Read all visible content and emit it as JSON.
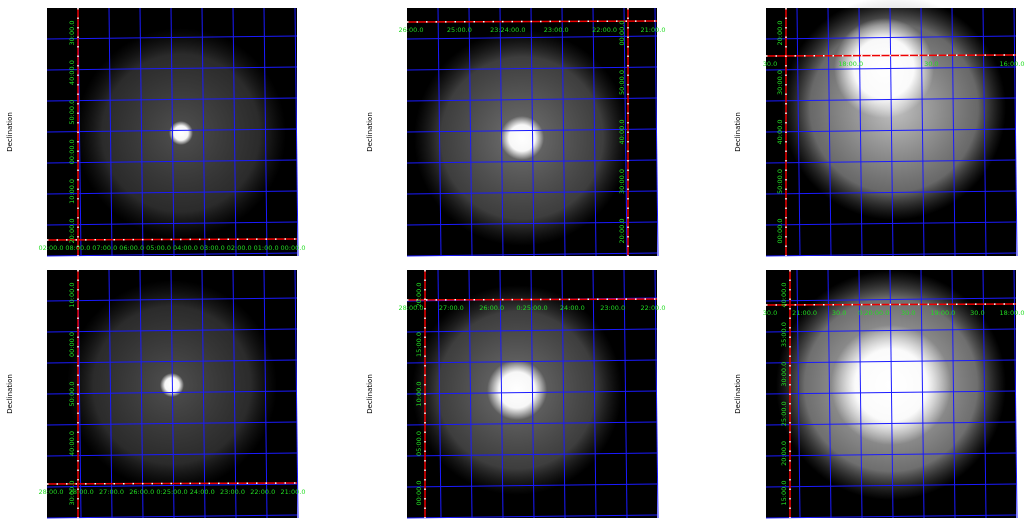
{
  "panels": [
    {
      "y_label": "Declination",
      "x_tick_labels": [
        "02:00.0",
        "08:00.0",
        "07:00.0",
        "06:00.0",
        "05:00.0",
        "04:00.0",
        "03:00.0",
        "02:00.0",
        "01:00.0",
        "00:00.0"
      ],
      "y_tick_labels": [
        "30:00.0",
        "40:00.0",
        "50:00.0",
        "00:00.0",
        "10:00.0",
        "20:00.0"
      ]
    },
    {
      "y_label": "Declination",
      "x_tick_labels": [
        "26:00.0",
        "25:00.0",
        "23:24:00.0",
        "23:00.0",
        "22:00.0",
        "21:00.0"
      ],
      "y_tick_labels": [
        "00:00.0",
        "50:00.0",
        "40:00.0",
        "30:00.0",
        "20:00.0"
      ]
    },
    {
      "y_label": "Declination",
      "x_tick_labels": [
        "30.0",
        "18:00.0",
        "30.0",
        "16:00.0"
      ],
      "y_tick_labels": [
        "20:00.0",
        "30:00.0",
        "40:00.0",
        "50:00.0",
        "00:00.0"
      ]
    },
    {
      "y_label": "Declination",
      "x_tick_labels": [
        "28:00.0",
        "28:00.0",
        "27:00.0",
        "26:00.0",
        "0:25:00.0",
        "24:00.0",
        "23:00.0",
        "22:00.0",
        "21:00.0"
      ],
      "y_tick_labels": [
        "10:00.0",
        "00:00.0",
        "50:00.0",
        "40:00.0",
        "30:00.0"
      ]
    },
    {
      "y_label": "Declination",
      "x_tick_labels": [
        "28:00.0",
        "27:00.0",
        "26:00.0",
        "0:25:00.0",
        "24:00.0",
        "23:00.0",
        "22:00.0"
      ],
      "y_tick_labels": [
        "20:00.0",
        "15:00.0",
        "10:00.0",
        "05:00.0",
        "00:00.0"
      ]
    },
    {
      "y_label": "Declination",
      "x_tick_labels": [
        "30.0",
        "21:00.0",
        "30.0",
        "0:20:00.0",
        "30.0",
        "19:00.0",
        "30.0",
        "18:00.0"
      ],
      "y_tick_labels": [
        "40:00.0",
        "35:00.0",
        "30:00.0",
        "25:00.0",
        "20:00.0",
        "15:00.0"
      ]
    }
  ]
}
